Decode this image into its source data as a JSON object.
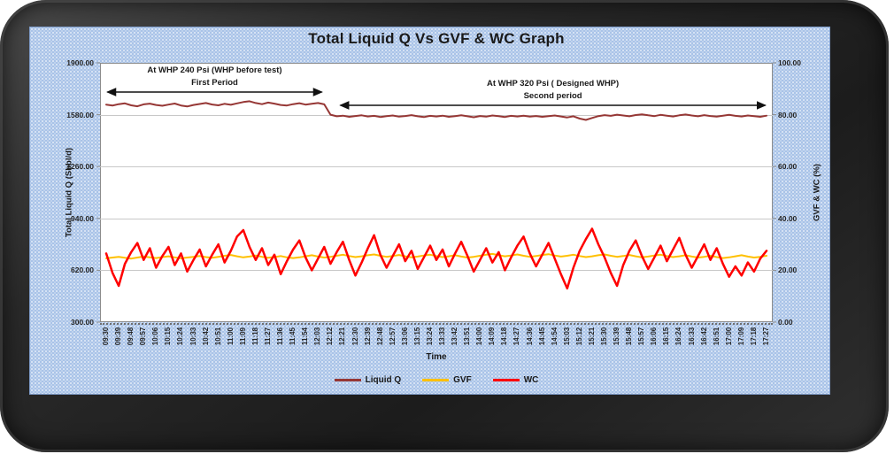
{
  "colors": {
    "panel_blue": "#A9C3E8",
    "frame_dark": "#222222",
    "plot_border": "#8C8C8C",
    "gridline": "#C8C8C8",
    "text": "#1A1A1A",
    "arrow": "#111111"
  },
  "chart_data": {
    "type": "line",
    "title": "Total Liquid Q Vs GVF & WC Graph",
    "xlabel": "Time",
    "ylabel_left": "Total Liquid Q (Sbbl/d)",
    "ylabel_right": "GVF & WC (%)",
    "grid": "horizontal",
    "legend_position": "bottom",
    "y_left": {
      "min": 300,
      "max": 1900,
      "ticks": [
        "1900.00",
        "1580.00",
        "1260.00",
        "940.00",
        "620.00",
        "300.00"
      ]
    },
    "y_right": {
      "min": 0,
      "max": 100,
      "ticks": [
        "100.00",
        "80.00",
        "60.00",
        "40.00",
        "20.00",
        "0.00"
      ]
    },
    "categories": [
      "09:30",
      "09:39",
      "09:48",
      "09:57",
      "10:06",
      "10:15",
      "10:24",
      "10:33",
      "10:42",
      "10:51",
      "11:00",
      "11:09",
      "11:18",
      "11:27",
      "11:36",
      "11:45",
      "11:54",
      "12:03",
      "12:12",
      "12:21",
      "12:30",
      "12:39",
      "12:48",
      "12:57",
      "13:06",
      "13:15",
      "13:24",
      "13:33",
      "13:42",
      "13:51",
      "14:00",
      "14:09",
      "14:18",
      "14:27",
      "14:36",
      "14:45",
      "14:54",
      "15:03",
      "15:12",
      "15:21",
      "15:30",
      "15:39",
      "15:48",
      "15:57",
      "16:06",
      "16:15",
      "16:24",
      "16:33",
      "16:42",
      "16:51",
      "17:00",
      "17:09",
      "17:18",
      "17:27"
    ],
    "series": [
      {
        "name": "Liquid Q",
        "color": "#963735",
        "axis": "left",
        "width": 2,
        "values": [
          1642,
          1636,
          1645,
          1650,
          1638,
          1632,
          1644,
          1648,
          1640,
          1635,
          1642,
          1649,
          1637,
          1631,
          1640,
          1646,
          1652,
          1643,
          1638,
          1647,
          1641,
          1650,
          1658,
          1663,
          1652,
          1645,
          1655,
          1648,
          1640,
          1637,
          1645,
          1651,
          1642,
          1647,
          1652,
          1644,
          1580,
          1570,
          1574,
          1567,
          1572,
          1576,
          1569,
          1573,
          1566,
          1571,
          1575,
          1568,
          1572,
          1577,
          1570,
          1565,
          1573,
          1569,
          1574,
          1567,
          1571,
          1576,
          1570,
          1564,
          1572,
          1568,
          1575,
          1571,
          1566,
          1573,
          1569,
          1574,
          1568,
          1572,
          1567,
          1571,
          1575,
          1569,
          1563,
          1570,
          1556,
          1548,
          1560,
          1571,
          1577,
          1573,
          1580,
          1575,
          1570,
          1578,
          1582,
          1576,
          1571,
          1579,
          1574,
          1569,
          1576,
          1581,
          1575,
          1570,
          1577,
          1572,
          1568,
          1574,
          1579,
          1573,
          1569,
          1575,
          1571,
          1567,
          1574
        ]
      },
      {
        "name": "GVF",
        "color": "#FFC000",
        "axis": "right",
        "width": 2,
        "values": [
          24.6,
          24.9,
          25.2,
          24.8,
          24.5,
          24.9,
          25.3,
          25.0,
          24.7,
          25.1,
          25.4,
          25.0,
          24.6,
          24.9,
          25.2,
          25.5,
          25.1,
          24.8,
          25.2,
          25.6,
          25.9,
          25.4,
          25.0,
          25.3,
          25.7,
          25.2,
          24.8,
          25.1,
          25.5,
          25.0,
          24.7,
          25.0,
          25.4,
          25.8,
          25.3,
          24.9,
          25.2,
          25.6,
          26.0,
          25.5,
          25.1,
          25.4,
          25.8,
          26.1,
          25.6,
          25.2,
          25.5,
          25.9,
          25.4,
          25.0,
          25.3,
          25.7,
          26.0,
          25.5,
          25.1,
          25.4,
          25.8,
          25.3,
          24.9,
          25.2,
          25.6,
          26.0,
          26.3,
          25.8,
          25.4,
          25.7,
          26.1,
          25.6,
          25.2,
          25.5,
          25.9,
          26.2,
          25.7,
          25.3,
          25.6,
          26.0,
          25.5,
          25.1,
          25.4,
          25.8,
          26.1,
          25.6,
          25.2,
          25.5,
          25.9,
          25.4,
          25.0,
          25.3,
          25.7,
          26.0,
          25.5,
          25.1,
          25.4,
          25.8,
          25.3,
          24.9,
          25.2,
          25.6,
          25.1,
          24.7,
          25.0,
          25.4,
          25.8,
          25.3,
          24.9,
          25.2,
          25.6
        ]
      },
      {
        "name": "WC",
        "color": "#FF0000",
        "axis": "right",
        "width": 2.5,
        "values": [
          26.5,
          19.0,
          14.0,
          22.5,
          27.0,
          30.5,
          24.0,
          28.5,
          21.0,
          25.5,
          29.0,
          22.0,
          26.5,
          19.5,
          24.0,
          28.0,
          21.5,
          26.0,
          30.0,
          23.0,
          27.5,
          33.0,
          35.5,
          29.0,
          24.0,
          28.5,
          22.0,
          26.0,
          18.5,
          23.5,
          28.0,
          31.5,
          25.0,
          20.0,
          24.5,
          29.0,
          22.5,
          27.0,
          31.0,
          24.0,
          18.0,
          23.0,
          28.5,
          33.5,
          26.0,
          21.0,
          25.5,
          30.0,
          23.5,
          27.5,
          20.5,
          25.0,
          29.5,
          24.0,
          28.0,
          21.5,
          26.5,
          31.0,
          25.5,
          19.5,
          24.0,
          28.5,
          23.0,
          27.0,
          20.0,
          25.0,
          29.5,
          33.0,
          26.5,
          21.5,
          26.0,
          30.5,
          24.5,
          18.5,
          13.0,
          21.0,
          27.5,
          32.0,
          36.0,
          30.0,
          25.0,
          19.0,
          14.0,
          22.0,
          27.5,
          31.5,
          25.5,
          20.5,
          25.0,
          29.5,
          23.5,
          28.0,
          32.5,
          26.0,
          21.0,
          25.5,
          30.0,
          24.0,
          28.5,
          22.5,
          17.5,
          21.5,
          18.0,
          23.0,
          19.5,
          24.5,
          27.5
        ]
      }
    ],
    "annotations": [
      {
        "line1": "At WHP 240 Psi (WHP before test)",
        "line2": "First Period",
        "start_tick": 0.1,
        "end_tick": 17.3
      },
      {
        "line1": "At WHP 320 Psi ( Designed WHP)",
        "line2": "Second period",
        "start_tick": 18.8,
        "end_tick": 52.9
      }
    ]
  }
}
